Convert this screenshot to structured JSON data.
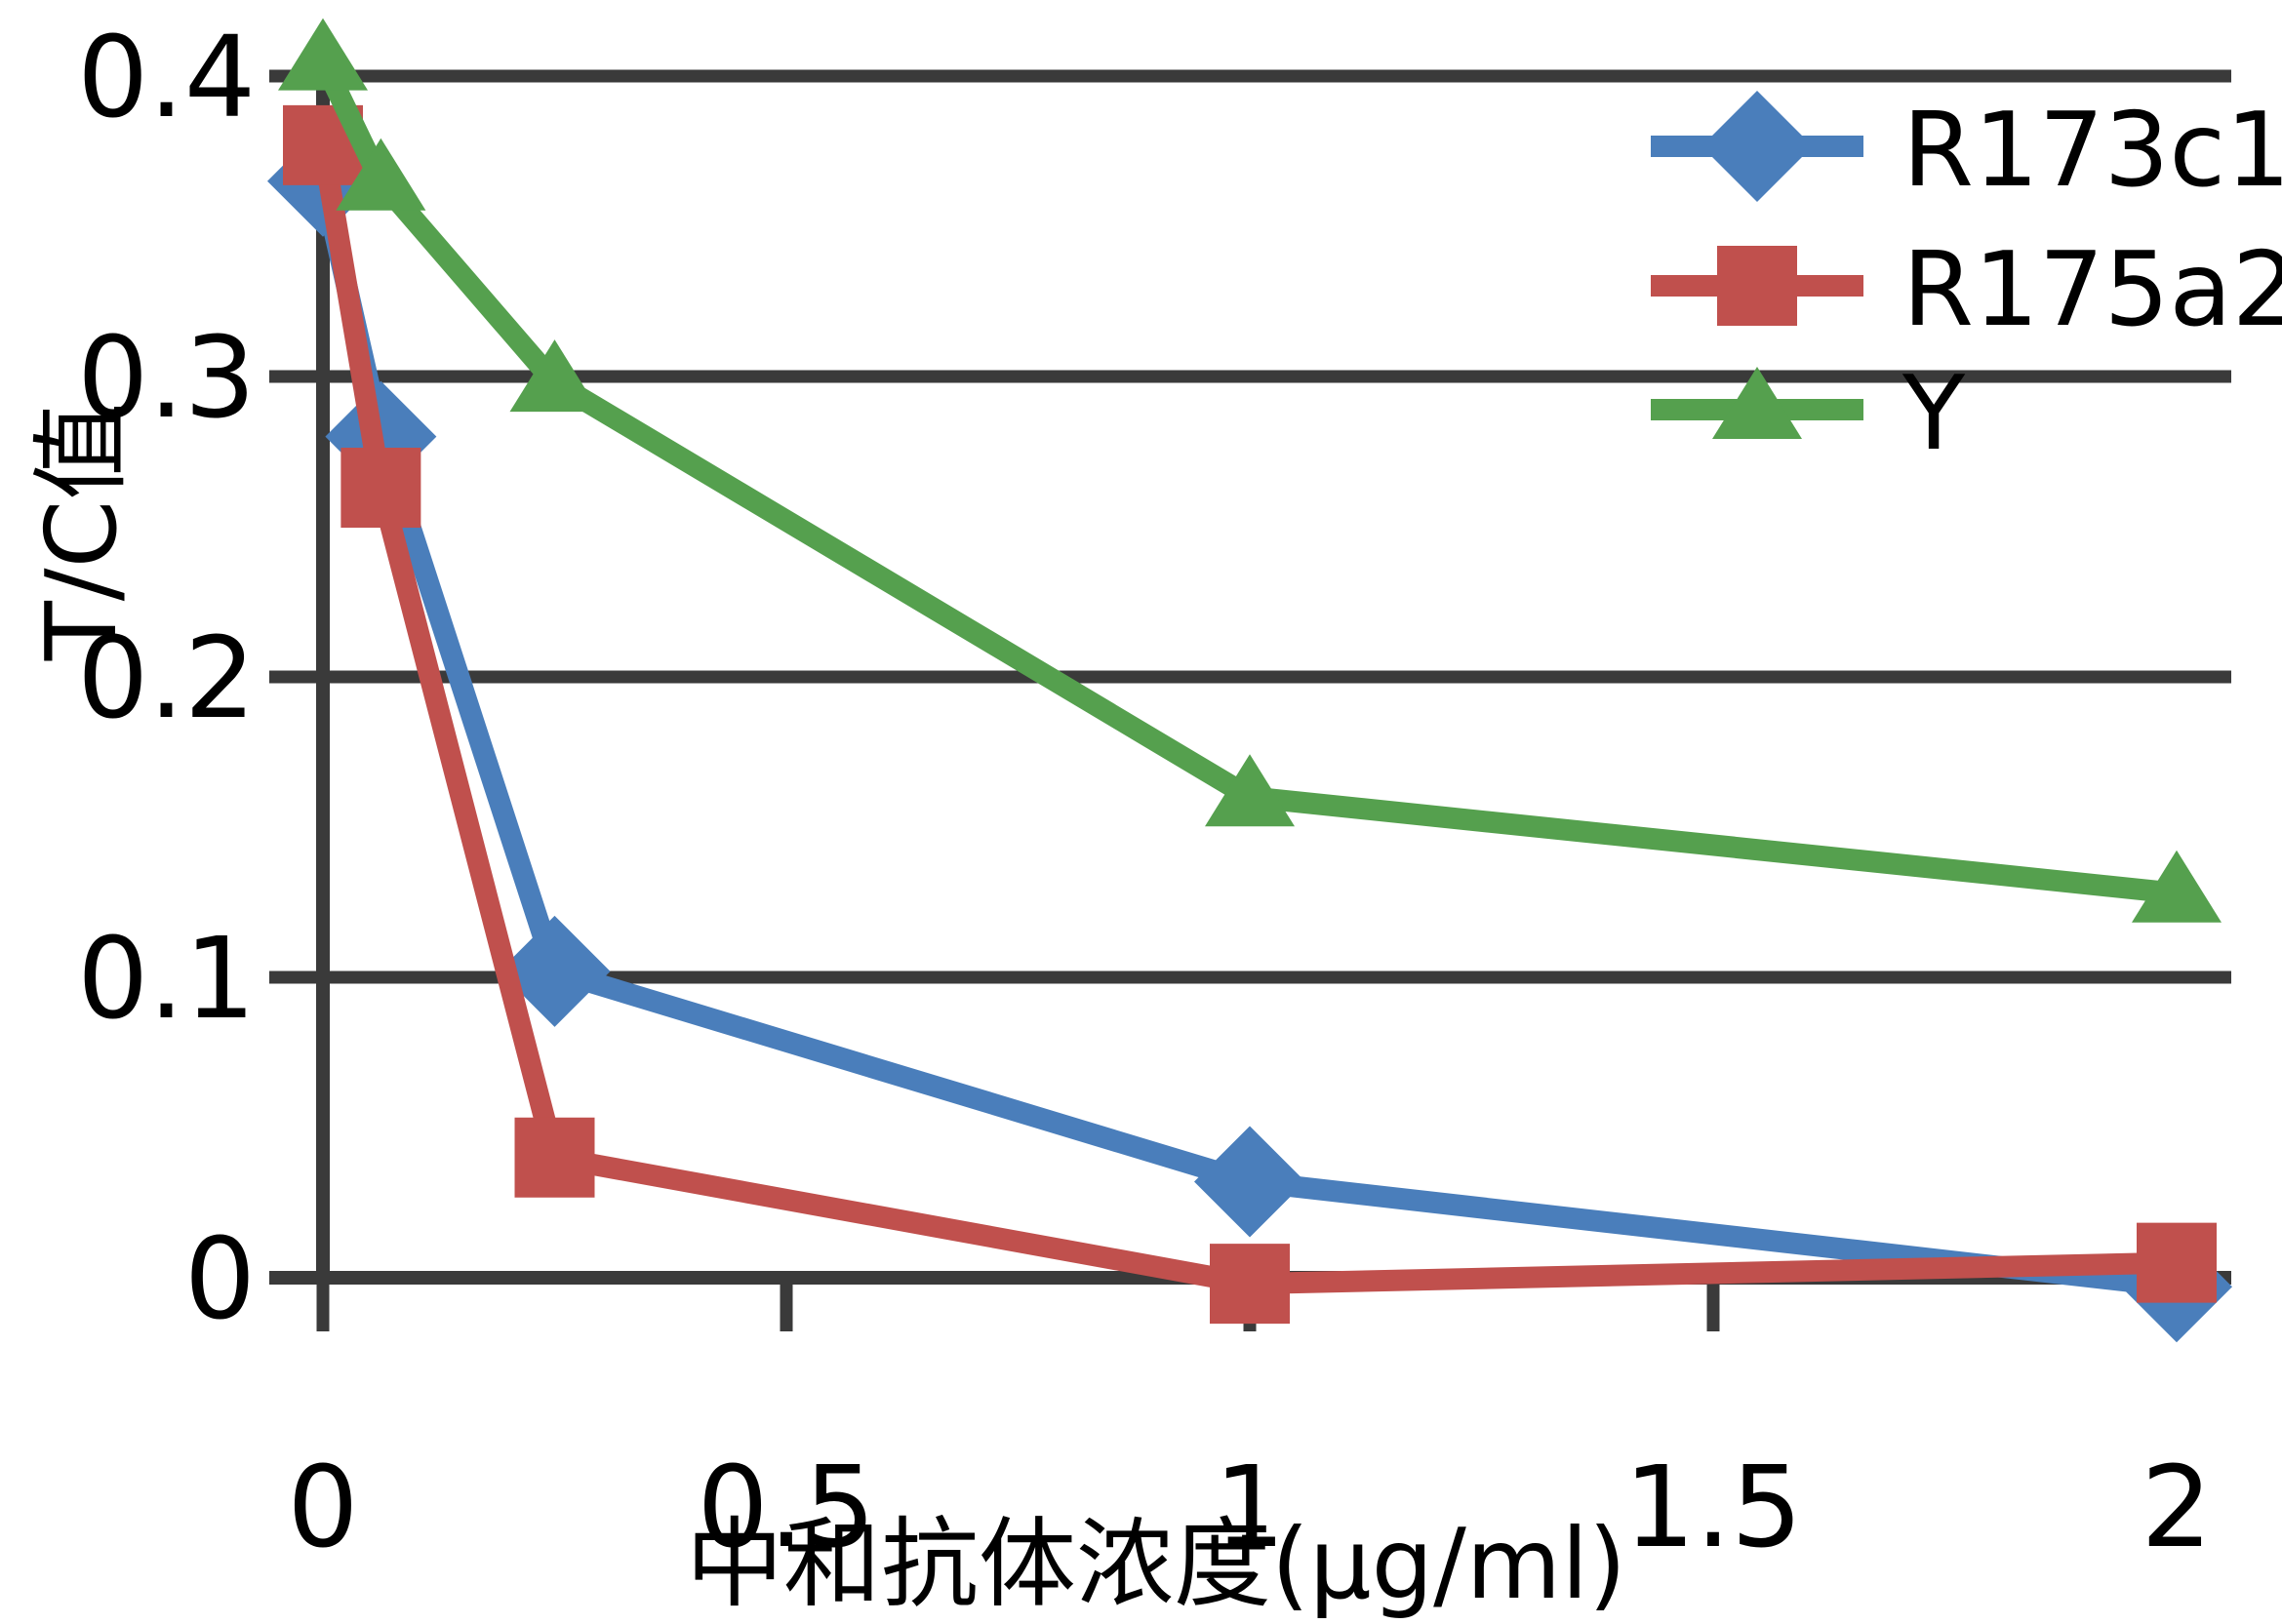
{
  "chart_data": {
    "type": "line",
    "title": "",
    "xlabel": "中和抗体浓度(μg/ml)",
    "ylabel": "T/C值",
    "x": [
      0,
      0.0625,
      0.25,
      1,
      2
    ],
    "xlim": [
      0,
      2.06
    ],
    "ylim": [
      -0.01,
      0.41
    ],
    "grid": "horizontal",
    "legend_position": "top-right",
    "axis_color": "#3a3a3a",
    "text_color": "#000000",
    "xticks": {
      "values": [
        0,
        0.5,
        1,
        1.5,
        2
      ],
      "labels": [
        "0",
        "0.5",
        "1",
        "1.5",
        "2"
      ]
    },
    "yticks": {
      "values": [
        0,
        0.1,
        0.2,
        0.3,
        0.4
      ],
      "labels": [
        "0",
        "0.1",
        "0.2",
        "0.3",
        "0.4"
      ]
    },
    "series": [
      {
        "name": "R173c1",
        "color": "#4a7ebb",
        "marker": "diamond",
        "values": [
          0.365,
          0.28,
          0.102,
          0.032,
          -0.003
        ]
      },
      {
        "name": "R175a2",
        "color": "#c0504d",
        "marker": "square",
        "values": [
          0.377,
          0.263,
          0.04,
          -0.002,
          0.005
        ]
      },
      {
        "name": "Y",
        "color": "#55a04e",
        "marker": "triangle",
        "values": [
          0.405,
          0.365,
          0.298,
          0.16,
          0.128
        ]
      }
    ]
  }
}
